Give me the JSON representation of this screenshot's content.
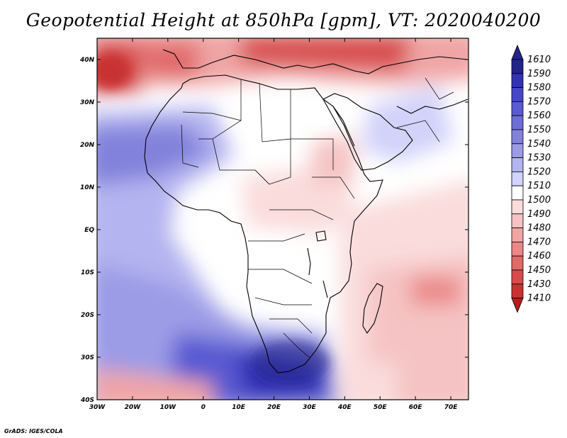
{
  "title": "Geopotential Height at 850hPa [gpm], VT: 2020040200",
  "credit": "GrADS: IGES/COLA",
  "axes": {
    "lon_labels": [
      "30W",
      "20W",
      "10W",
      "0",
      "10E",
      "20E",
      "30E",
      "40E",
      "50E",
      "60E",
      "70E"
    ],
    "lat_labels": [
      "40N",
      "30N",
      "20N",
      "10N",
      "EQ",
      "10S",
      "20S",
      "30S",
      "40S"
    ]
  },
  "colorbar": {
    "levels": [
      "1610",
      "1590",
      "1580",
      "1570",
      "1560",
      "1550",
      "1540",
      "1530",
      "1520",
      "1510",
      "1500",
      "1490",
      "1480",
      "1470",
      "1460",
      "1450",
      "1430",
      "1410"
    ],
    "colors": [
      "#23238c",
      "#3232b4",
      "#4646c8",
      "#5a5ad2",
      "#6e6ed7",
      "#8282dc",
      "#9b9be6",
      "#b4b4f0",
      "#d2d2fa",
      "#ffffff",
      "#fadcdc",
      "#f5c3c3",
      "#f0a5a5",
      "#eb8787",
      "#e16969",
      "#d74b4b",
      "#c83232",
      "#b41e1e"
    ]
  },
  "map_data": {
    "domain": {
      "lon_min": -30,
      "lon_max": 75,
      "lat_min": -40,
      "lat_max": 45
    },
    "fields": [
      {
        "region": "southern-anticyclone-blue",
        "level": "1590"
      },
      {
        "region": "north-africa-mediterranean-red",
        "level": "1430"
      },
      {
        "region": "indian-ocean-pink",
        "level": "1480"
      }
    ]
  }
}
